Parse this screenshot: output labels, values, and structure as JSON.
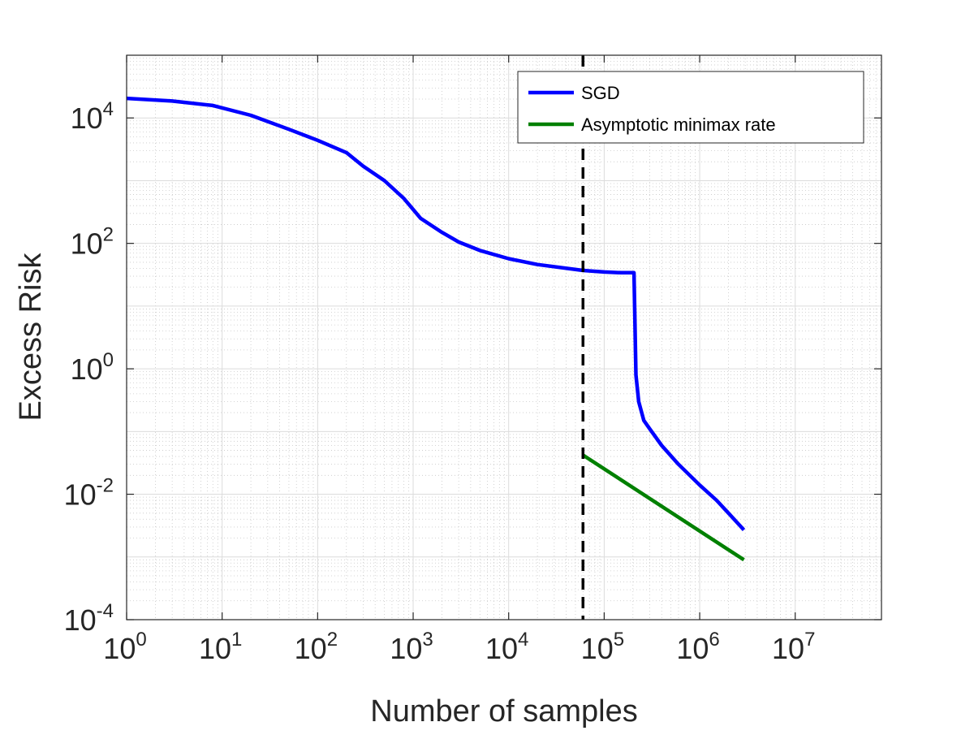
{
  "chart_data": {
    "type": "line",
    "scale": {
      "x": "log",
      "y": "log"
    },
    "xlabel": "Number of samples",
    "ylabel": "Excess Risk",
    "xlim": [
      1,
      80000000
    ],
    "ylim": [
      0.0001,
      100000
    ],
    "x_ticks": [
      {
        "base": "10",
        "exp": "0",
        "value": 1
      },
      {
        "base": "10",
        "exp": "1",
        "value": 10
      },
      {
        "base": "10",
        "exp": "2",
        "value": 100
      },
      {
        "base": "10",
        "exp": "3",
        "value": 1000
      },
      {
        "base": "10",
        "exp": "4",
        "value": 10000
      },
      {
        "base": "10",
        "exp": "5",
        "value": 100000
      },
      {
        "base": "10",
        "exp": "6",
        "value": 1000000
      },
      {
        "base": "10",
        "exp": "7",
        "value": 10000000
      }
    ],
    "y_ticks": [
      {
        "base": "10",
        "exp": "-4",
        "value": 0.0001
      },
      {
        "base": "10",
        "exp": "-2",
        "value": 0.01
      },
      {
        "base": "10",
        "exp": "0",
        "value": 1
      },
      {
        "base": "10",
        "exp": "2",
        "value": 100
      },
      {
        "base": "10",
        "exp": "4",
        "value": 10000
      }
    ],
    "grid": true,
    "minor_grid": true,
    "legend_position": "top-right",
    "series": [
      {
        "name": "SGD",
        "color": "#0000ff",
        "points": [
          [
            1,
            20500
          ],
          [
            3,
            18600
          ],
          [
            8,
            15800
          ],
          [
            20,
            11000
          ],
          [
            50,
            6600
          ],
          [
            100,
            4400
          ],
          [
            200,
            2800
          ],
          [
            300,
            1700
          ],
          [
            500,
            1000
          ],
          [
            800,
            520
          ],
          [
            1200,
            250
          ],
          [
            2000,
            150
          ],
          [
            3000,
            105
          ],
          [
            5000,
            77
          ],
          [
            10000,
            57
          ],
          [
            20000,
            46
          ],
          [
            60000,
            37
          ],
          [
            100000,
            35
          ],
          [
            150000,
            34
          ],
          [
            205000,
            34
          ],
          [
            215000,
            0.8
          ],
          [
            230000,
            0.3
          ],
          [
            260000,
            0.15
          ],
          [
            300000,
            0.11
          ],
          [
            400000,
            0.06
          ],
          [
            600000,
            0.03
          ],
          [
            1000000,
            0.014
          ],
          [
            1500000,
            0.008
          ],
          [
            2000000,
            0.005
          ],
          [
            2900000,
            0.0027
          ]
        ]
      },
      {
        "name": "Asymptotic minimax rate",
        "color": "#008000",
        "points": [
          [
            60000,
            0.042
          ],
          [
            2900000,
            0.0009
          ]
        ]
      }
    ],
    "reference_lines": [
      {
        "type": "vertical",
        "x": 60000,
        "style": "dashed",
        "color": "#000000"
      }
    ]
  }
}
